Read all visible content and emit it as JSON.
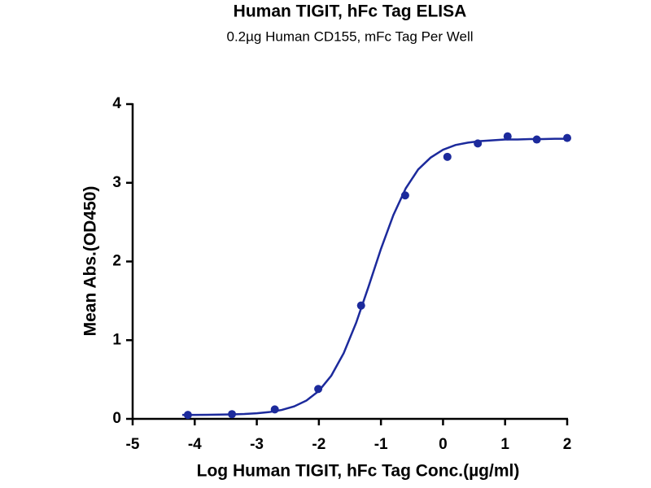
{
  "chart_data": {
    "type": "scatter",
    "title": "Human TIGIT, hFc Tag ELISA",
    "subtitle": "0.2µg Human CD155, mFc Tag Per Well",
    "x_label": "Log Human TIGIT, hFc Tag Conc.(µg/ml)",
    "y_label": "Mean Abs.(OD450)",
    "xlim": [
      -5,
      2
    ],
    "xticks": [
      -5,
      -4,
      -3,
      -2,
      -1,
      0,
      1,
      2
    ],
    "ylim": [
      0,
      4
    ],
    "yticks": [
      0,
      1,
      2,
      3,
      4
    ],
    "grid": false,
    "series": [
      {
        "type": "scatter",
        "color": "#1c2a9c",
        "x": [
          -4.11,
          -3.4,
          -2.71,
          -2.01,
          -1.32,
          -0.61,
          0.07,
          0.56,
          1.04,
          1.51,
          2.0
        ],
        "values": [
          0.05,
          0.06,
          0.12,
          0.38,
          1.44,
          2.84,
          3.33,
          3.5,
          3.59,
          3.55,
          3.57
        ]
      },
      {
        "type": "line",
        "color": "#1c2a9c",
        "x": [
          -4.2,
          -4.0,
          -3.8,
          -3.6,
          -3.4,
          -3.2,
          -3.0,
          -2.8,
          -2.6,
          -2.4,
          -2.2,
          -2.0,
          -1.8,
          -1.6,
          -1.4,
          -1.2,
          -1.0,
          -0.8,
          -0.6,
          -0.4,
          -0.2,
          0.0,
          0.2,
          0.4,
          0.6,
          0.8,
          1.0,
          1.2,
          1.4,
          1.6,
          1.8,
          2.0
        ],
        "values": [
          0.051,
          0.051,
          0.052,
          0.054,
          0.057,
          0.062,
          0.071,
          0.086,
          0.113,
          0.158,
          0.233,
          0.356,
          0.549,
          0.835,
          1.22,
          1.68,
          2.16,
          2.59,
          2.93,
          3.17,
          3.32,
          3.42,
          3.48,
          3.51,
          3.53,
          3.54,
          3.55,
          3.55,
          3.555,
          3.555,
          3.56,
          3.56
        ]
      }
    ]
  }
}
